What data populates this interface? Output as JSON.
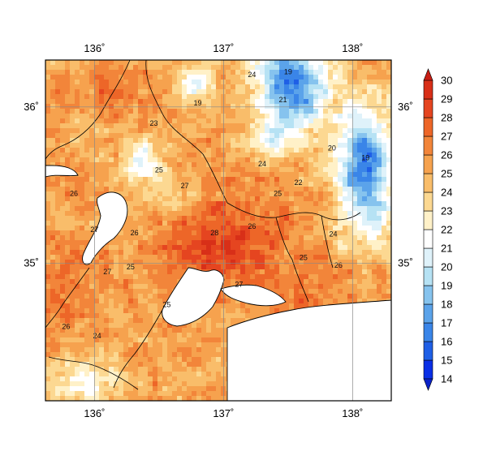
{
  "map": {
    "lon_ticks": [
      {
        "lon": 136,
        "label": "136˚"
      },
      {
        "lon": 137,
        "label": "137˚"
      },
      {
        "lon": 138,
        "label": "138˚"
      }
    ],
    "lat_ticks": [
      {
        "lat": 36,
        "label": "36˚"
      },
      {
        "lat": 35,
        "label": "35˚"
      }
    ],
    "lon_range": [
      135.62,
      138.3
    ],
    "lat_range": [
      34.12,
      36.3
    ],
    "contour_labels": [
      {
        "text": "24",
        "lon": 137.22,
        "lat": 36.19
      },
      {
        "text": "19",
        "lon": 137.5,
        "lat": 36.21
      },
      {
        "text": "19",
        "lon": 136.8,
        "lat": 36.01
      },
      {
        "text": "21",
        "lon": 137.46,
        "lat": 36.03
      },
      {
        "text": "23",
        "lon": 136.46,
        "lat": 35.88
      },
      {
        "text": "24",
        "lon": 137.3,
        "lat": 35.62
      },
      {
        "text": "25",
        "lon": 136.5,
        "lat": 35.58
      },
      {
        "text": "27",
        "lon": 136.7,
        "lat": 35.48
      },
      {
        "text": "26",
        "lon": 135.84,
        "lat": 35.43
      },
      {
        "text": "25",
        "lon": 137.42,
        "lat": 35.43
      },
      {
        "text": "22",
        "lon": 137.58,
        "lat": 35.5
      },
      {
        "text": "20",
        "lon": 137.84,
        "lat": 35.72
      },
      {
        "text": "19",
        "lon": 138.1,
        "lat": 35.66
      },
      {
        "text": "27",
        "lon": 136.0,
        "lat": 35.2
      },
      {
        "text": "26",
        "lon": 136.31,
        "lat": 35.18
      },
      {
        "text": "28",
        "lon": 136.93,
        "lat": 35.18
      },
      {
        "text": "26",
        "lon": 137.22,
        "lat": 35.22
      },
      {
        "text": "24",
        "lon": 137.85,
        "lat": 35.17
      },
      {
        "text": "25",
        "lon": 137.62,
        "lat": 35.02
      },
      {
        "text": "26",
        "lon": 137.89,
        "lat": 34.97
      },
      {
        "text": "25",
        "lon": 136.28,
        "lat": 34.96
      },
      {
        "text": "27",
        "lon": 136.1,
        "lat": 34.93
      },
      {
        "text": "27",
        "lon": 137.12,
        "lat": 34.85
      },
      {
        "text": "25",
        "lon": 136.56,
        "lat": 34.72
      },
      {
        "text": "26",
        "lon": 135.78,
        "lat": 34.58
      },
      {
        "text": "24",
        "lon": 136.02,
        "lat": 34.52
      }
    ]
  },
  "colorbar": {
    "levels": [
      14,
      15,
      16,
      17,
      18,
      19,
      20,
      21,
      22,
      23,
      24,
      25,
      26,
      27,
      28,
      29,
      30
    ],
    "colors": [
      "#0a2fe6",
      "#1f5fe6",
      "#3a85e8",
      "#5ba3ea",
      "#86c3ee",
      "#b6e2f4",
      "#dff2fa",
      "#ffffff",
      "#fff1c8",
      "#fcd891",
      "#f9bd6a",
      "#f6a24e",
      "#f2853a",
      "#ed6628",
      "#e54520",
      "#d82f18"
    ],
    "under_color": "#0a22c8",
    "over_color": "#c81e14"
  }
}
